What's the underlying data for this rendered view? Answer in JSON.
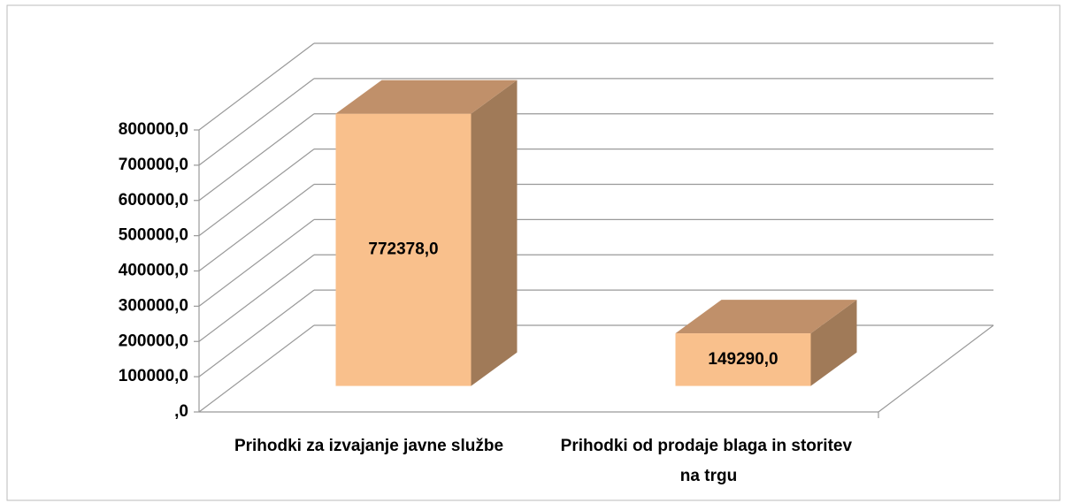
{
  "chart_data": {
    "type": "bar3d",
    "categories": [
      "Prihodki za izvajanje javne službe",
      "Prihodki od prodaje blaga in storitev na trgu"
    ],
    "values": [
      772378,
      149290
    ],
    "value_labels": [
      "772378,0",
      "149290,0"
    ],
    "colors": {
      "front": "#f9c08c",
      "top": "#c0906a",
      "side": "#a07a58"
    },
    "ylim": [
      0,
      800000
    ],
    "yticks": [
      {
        "value": 0,
        "label": ",0"
      },
      {
        "value": 100000,
        "label": "100000,0"
      },
      {
        "value": 200000,
        "label": "200000,0"
      },
      {
        "value": 300000,
        "label": "300000,0"
      },
      {
        "value": 400000,
        "label": "400000,0"
      },
      {
        "value": 500000,
        "label": "500000,0"
      },
      {
        "value": 600000,
        "label": "600000,0"
      },
      {
        "value": 700000,
        "label": "700000,0"
      },
      {
        "value": 800000,
        "label": "800000,0"
      }
    ],
    "grid": true
  }
}
